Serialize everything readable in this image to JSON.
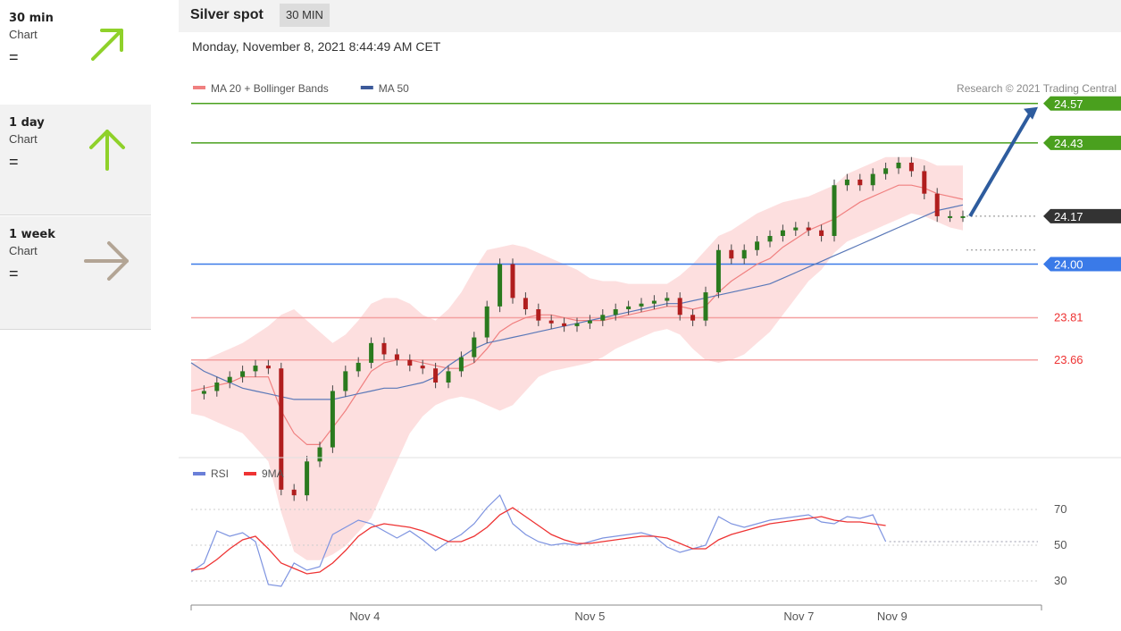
{
  "sidebar": {
    "timeframes": [
      {
        "name": "30 min",
        "sub": "Chart",
        "state": "=",
        "direction": "up-right",
        "color": "#8fd12a"
      },
      {
        "name": "1 day",
        "sub": "Chart",
        "state": "=",
        "direction": "up",
        "color": "#8fd12a"
      },
      {
        "name": "1 week",
        "sub": "Chart",
        "state": "=",
        "direction": "right",
        "color": "#b3a595"
      }
    ]
  },
  "header": {
    "title": "Silver spot",
    "badge": "30 MIN"
  },
  "timestamp": "Monday, November 8, 2021 8:44:49 AM CET",
  "chart_data": [
    {
      "type": "line",
      "panel": "price",
      "legend": [
        {
          "name": "MA 20 + Bollinger Bands",
          "color": "#f08080"
        },
        {
          "name": "MA 50",
          "color": "#3c5a9a"
        }
      ],
      "source": "Research © 2021 Trading Central",
      "ylim": [
        23.32,
        24.62
      ],
      "xlim": [
        0,
        240
      ],
      "levels": [
        {
          "label": "24.57",
          "value": 24.57,
          "color": "#4aa01e",
          "kind": "resistance"
        },
        {
          "label": "24.43",
          "value": 24.43,
          "color": "#4aa01e",
          "kind": "resistance"
        },
        {
          "label": "24.17",
          "value": 24.17,
          "color": "#333333",
          "kind": "last"
        },
        {
          "label": "24.00",
          "value": 24.0,
          "color": "#3a7ae8",
          "kind": "pivot"
        },
        {
          "label": "23.81",
          "value": 23.81,
          "color": "#ee4444",
          "kind": "support"
        },
        {
          "label": "23.66",
          "value": 23.66,
          "color": "#ee4444",
          "kind": "support"
        }
      ],
      "price": {
        "x": [
          0,
          4,
          8,
          12,
          16,
          20,
          24,
          28,
          32,
          36,
          40,
          44,
          48,
          52,
          56,
          60,
          64,
          68,
          72,
          76,
          80,
          84,
          88,
          92,
          96,
          100,
          104,
          108,
          112,
          116,
          120,
          124,
          128,
          132,
          136,
          140,
          144,
          148,
          152,
          156,
          160,
          164,
          168,
          172,
          176,
          180,
          184,
          188,
          192,
          196,
          200,
          204,
          208,
          212,
          216,
          220,
          224,
          228,
          232,
          236,
          240
        ],
        "close": [
          23.54,
          23.55,
          23.58,
          23.6,
          23.62,
          23.64,
          23.63,
          23.2,
          23.18,
          23.3,
          23.35,
          23.55,
          23.62,
          23.65,
          23.72,
          23.68,
          23.66,
          23.64,
          23.63,
          23.58,
          23.62,
          23.67,
          23.74,
          23.85,
          24.0,
          23.88,
          23.84,
          23.8,
          23.79,
          23.78,
          23.79,
          23.8,
          23.82,
          23.84,
          23.85,
          23.86,
          23.87,
          23.88,
          23.82,
          23.8,
          23.9,
          24.05,
          24.02,
          24.05,
          24.08,
          24.1,
          24.12,
          24.13,
          24.12,
          24.1,
          24.28,
          24.3,
          24.28,
          24.32,
          24.34,
          24.36,
          24.33,
          24.25,
          24.17,
          24.17,
          24.17
        ],
        "ma20": [
          23.55,
          23.56,
          23.57,
          23.58,
          23.6,
          23.6,
          23.6,
          23.48,
          23.4,
          23.36,
          23.36,
          23.42,
          23.48,
          23.55,
          23.62,
          23.65,
          23.66,
          23.66,
          23.65,
          23.64,
          23.63,
          23.63,
          23.65,
          23.7,
          23.76,
          23.79,
          23.81,
          23.82,
          23.82,
          23.81,
          23.8,
          23.8,
          23.8,
          23.81,
          23.82,
          23.83,
          23.84,
          23.85,
          23.85,
          23.84,
          23.85,
          23.9,
          23.94,
          23.97,
          24.0,
          24.02,
          24.06,
          24.09,
          24.12,
          24.14,
          24.16,
          24.19,
          24.22,
          24.24,
          24.26,
          24.28,
          24.28,
          24.27,
          24.25,
          24.24,
          24.23
        ],
        "ma50": [
          23.65,
          23.62,
          23.6,
          23.58,
          23.56,
          23.55,
          23.54,
          23.53,
          23.52,
          23.52,
          23.52,
          23.52,
          23.53,
          23.54,
          23.55,
          23.56,
          23.56,
          23.57,
          23.58,
          23.6,
          23.64,
          23.67,
          23.7,
          23.72,
          23.73,
          23.74,
          23.75,
          23.76,
          23.77,
          23.78,
          23.79,
          23.8,
          23.81,
          23.82,
          23.83,
          23.84,
          23.85,
          23.86,
          23.86,
          23.87,
          23.88,
          23.89,
          23.9,
          23.91,
          23.92,
          23.93,
          23.95,
          23.97,
          23.99,
          24.01,
          24.03,
          24.05,
          24.07,
          24.09,
          24.11,
          24.13,
          24.15,
          24.17,
          24.19,
          24.2,
          24.21
        ],
        "bb_upper": [
          23.65,
          23.66,
          23.68,
          23.7,
          23.72,
          23.75,
          23.78,
          23.82,
          23.84,
          23.8,
          23.76,
          23.72,
          23.75,
          23.8,
          23.86,
          23.88,
          23.88,
          23.86,
          23.82,
          23.8,
          23.84,
          23.9,
          23.98,
          24.05,
          24.06,
          24.07,
          24.06,
          24.04,
          24.02,
          24.0,
          23.98,
          23.95,
          23.94,
          23.94,
          23.93,
          23.93,
          23.93,
          23.93,
          23.96,
          24.0,
          24.05,
          24.1,
          24.12,
          24.15,
          24.18,
          24.2,
          24.22,
          24.23,
          24.24,
          24.26,
          24.28,
          24.32,
          24.34,
          24.36,
          24.38,
          24.38,
          24.38,
          24.37,
          24.35,
          24.35,
          24.35
        ],
        "bb_lower": [
          23.47,
          23.46,
          23.44,
          23.42,
          23.4,
          23.35,
          23.3,
          23.12,
          22.98,
          22.95,
          22.95,
          22.97,
          23.0,
          23.05,
          23.1,
          23.2,
          23.3,
          23.4,
          23.46,
          23.5,
          23.52,
          23.53,
          23.52,
          23.5,
          23.48,
          23.5,
          23.55,
          23.6,
          23.62,
          23.63,
          23.64,
          23.65,
          23.67,
          23.7,
          23.72,
          23.74,
          23.76,
          23.77,
          23.75,
          23.7,
          23.66,
          23.65,
          23.66,
          23.68,
          23.72,
          23.76,
          23.82,
          23.88,
          23.94,
          23.98,
          24.04,
          24.08,
          24.1,
          24.12,
          24.14,
          24.16,
          24.18,
          24.17,
          24.15,
          24.13,
          24.12
        ]
      }
    },
    {
      "type": "line",
      "panel": "rsi",
      "legend": [
        {
          "name": "RSI",
          "color": "#6a7fd8"
        },
        {
          "name": "9MA",
          "color": "#ee3333"
        }
      ],
      "ylim": [
        20,
        85
      ],
      "yticks": [
        "70",
        "50",
        "30"
      ],
      "xticks": [
        {
          "label": "Nov 4",
          "x": 54
        },
        {
          "label": "Nov 5",
          "x": 124
        },
        {
          "label": "Nov 7",
          "x": 189
        },
        {
          "label": "Nov 9",
          "x": 218
        }
      ],
      "rsi_x": [
        0,
        4,
        8,
        12,
        16,
        20,
        24,
        28,
        32,
        36,
        40,
        44,
        48,
        52,
        56,
        60,
        64,
        68,
        72,
        76,
        80,
        84,
        88,
        92,
        96,
        100,
        104,
        108,
        112,
        116,
        120,
        124,
        128,
        132,
        136,
        140,
        144,
        148,
        152,
        156,
        160,
        164,
        168,
        172,
        176,
        180,
        184,
        188,
        192,
        196,
        200,
        204,
        208,
        212,
        216
      ],
      "rsi": [
        35,
        40,
        58,
        55,
        57,
        52,
        28,
        27,
        40,
        36,
        38,
        56,
        60,
        64,
        62,
        58,
        54,
        58,
        53,
        47,
        52,
        56,
        62,
        71,
        78,
        62,
        56,
        52,
        50,
        51,
        50,
        52,
        54,
        55,
        56,
        57,
        55,
        49,
        46,
        48,
        50,
        66,
        62,
        60,
        62,
        64,
        65,
        66,
        67,
        63,
        62,
        66,
        65,
        67,
        52
      ],
      "ma9": [
        36,
        37,
        42,
        48,
        53,
        55,
        48,
        40,
        37,
        34,
        35,
        40,
        47,
        55,
        60,
        62,
        61,
        60,
        58,
        55,
        52,
        52,
        55,
        60,
        67,
        71,
        66,
        61,
        56,
        53,
        51,
        51,
        52,
        53,
        54,
        55,
        55,
        54,
        51,
        48,
        48,
        53,
        56,
        58,
        60,
        62,
        63,
        64,
        65,
        66,
        64,
        63,
        63,
        62,
        61
      ]
    }
  ]
}
